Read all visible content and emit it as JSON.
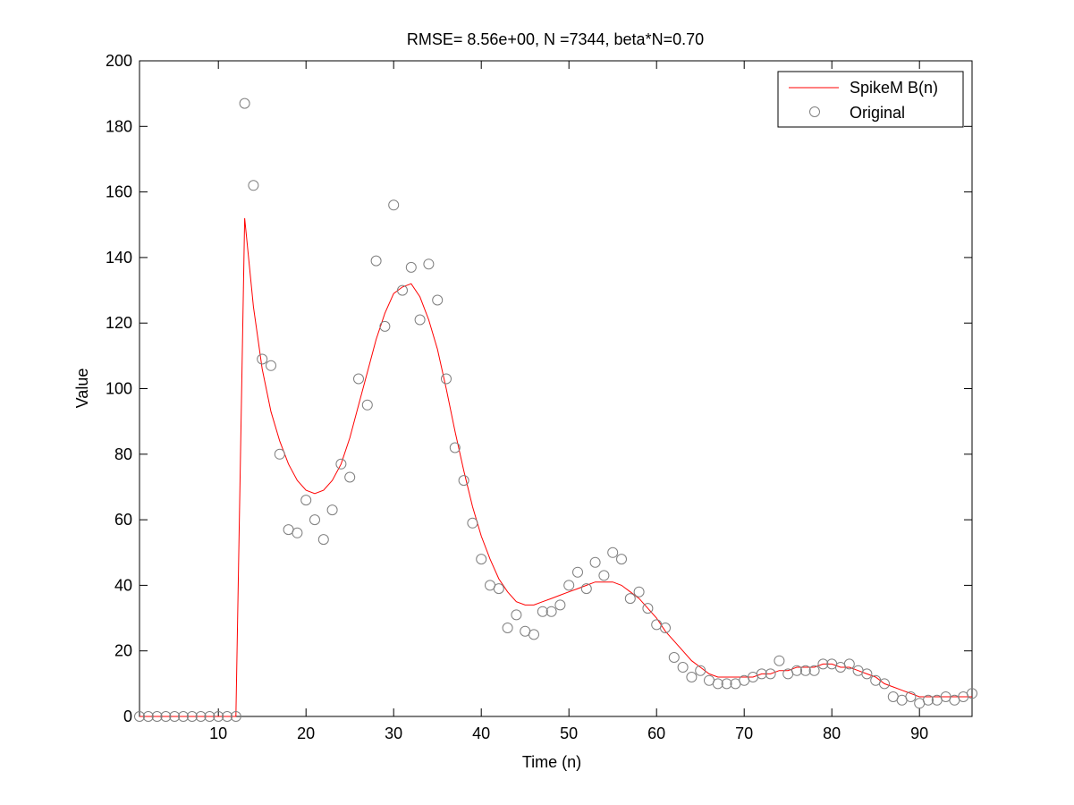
{
  "chart_data": {
    "type": "line",
    "title": "RMSE= 8.56e+00, N =7344, beta*N=0.70",
    "xlabel": "Time (n)",
    "ylabel": "Value",
    "xlim": [
      1,
      96
    ],
    "ylim": [
      0,
      200
    ],
    "xticks": [
      10,
      20,
      30,
      40,
      50,
      60,
      70,
      80,
      90
    ],
    "yticks": [
      0,
      20,
      40,
      60,
      80,
      100,
      120,
      140,
      160,
      180,
      200
    ],
    "grid": false,
    "legend_position": "top-right",
    "series": [
      {
        "name": "SpikeM B(n)",
        "style": "line",
        "color": "#ff0000",
        "x": [
          1,
          2,
          3,
          4,
          5,
          6,
          7,
          8,
          9,
          10,
          11,
          12,
          13,
          14,
          15,
          16,
          17,
          18,
          19,
          20,
          21,
          22,
          23,
          24,
          25,
          26,
          27,
          28,
          29,
          30,
          31,
          32,
          33,
          34,
          35,
          36,
          37,
          38,
          39,
          40,
          41,
          42,
          43,
          44,
          45,
          46,
          47,
          48,
          49,
          50,
          51,
          52,
          53,
          54,
          55,
          56,
          57,
          58,
          59,
          60,
          61,
          62,
          63,
          64,
          65,
          66,
          67,
          68,
          69,
          70,
          71,
          72,
          73,
          74,
          75,
          76,
          77,
          78,
          79,
          80,
          81,
          82,
          83,
          84,
          85,
          86,
          87,
          88,
          89,
          90,
          91,
          92,
          93,
          94,
          95,
          96
        ],
        "y": [
          0,
          0,
          0,
          0,
          0,
          0,
          0,
          0,
          0,
          0,
          0,
          0,
          152,
          125,
          106,
          93,
          84,
          77,
          72,
          69,
          68,
          69,
          72,
          77,
          85,
          95,
          105,
          115,
          123,
          129,
          131,
          132,
          128,
          121,
          112,
          100,
          87,
          75,
          64,
          55,
          48,
          42,
          38,
          35,
          34,
          34,
          35,
          36,
          37,
          38,
          39,
          40,
          41,
          41,
          41,
          40,
          38,
          36,
          33,
          30,
          26,
          23,
          20,
          17,
          15,
          13,
          12,
          12,
          12,
          12,
          12,
          13,
          13,
          14,
          14,
          15,
          15,
          15,
          16,
          16,
          15,
          15,
          14,
          13,
          12,
          10,
          9,
          8,
          7,
          6,
          6,
          6,
          6,
          6,
          6,
          6
        ]
      },
      {
        "name": "Original",
        "style": "markers",
        "color": "#808080",
        "x": [
          1,
          2,
          3,
          4,
          5,
          6,
          7,
          8,
          9,
          10,
          11,
          12,
          13,
          14,
          15,
          16,
          17,
          18,
          19,
          20,
          21,
          22,
          23,
          24,
          25,
          26,
          27,
          28,
          29,
          30,
          31,
          32,
          33,
          34,
          35,
          36,
          37,
          38,
          39,
          40,
          41,
          42,
          43,
          44,
          45,
          46,
          47,
          48,
          49,
          50,
          51,
          52,
          53,
          54,
          55,
          56,
          57,
          58,
          59,
          60,
          61,
          62,
          63,
          64,
          65,
          66,
          67,
          68,
          69,
          70,
          71,
          72,
          73,
          74,
          75,
          76,
          77,
          78,
          79,
          80,
          81,
          82,
          83,
          84,
          85,
          86,
          87,
          88,
          89,
          90,
          91,
          92,
          93,
          94,
          95,
          96
        ],
        "y": [
          0,
          0,
          0,
          0,
          0,
          0,
          0,
          0,
          0,
          0,
          0,
          0,
          187,
          162,
          109,
          107,
          80,
          57,
          56,
          66,
          60,
          54,
          63,
          77,
          73,
          103,
          95,
          139,
          119,
          156,
          130,
          137,
          121,
          138,
          127,
          103,
          82,
          72,
          59,
          48,
          40,
          39,
          27,
          31,
          26,
          25,
          32,
          32,
          34,
          40,
          44,
          39,
          47,
          43,
          50,
          48,
          36,
          38,
          33,
          28,
          27,
          18,
          15,
          12,
          14,
          11,
          10,
          10,
          10,
          11,
          12,
          13,
          13,
          17,
          13,
          14,
          14,
          14,
          16,
          16,
          15,
          16,
          14,
          13,
          11,
          10,
          6,
          5,
          6,
          4,
          5,
          5,
          6,
          5,
          6,
          7
        ]
      }
    ]
  }
}
